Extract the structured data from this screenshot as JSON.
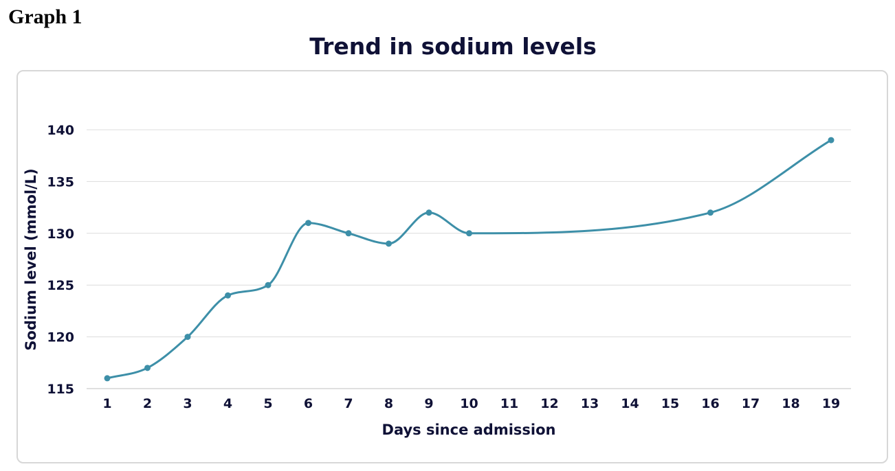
{
  "heading": "Graph 1",
  "chart_data": {
    "type": "line",
    "title": "Trend in sodium levels",
    "xlabel": "Days since admission",
    "ylabel": "Sodium level (mmol/L)",
    "x_ticks": [
      "1",
      "2",
      "3",
      "4",
      "5",
      "6",
      "7",
      "8",
      "9",
      "10",
      "11",
      "12",
      "13",
      "14",
      "15",
      "16",
      "17",
      "18",
      "19"
    ],
    "y_ticks": [
      115,
      120,
      125,
      130,
      135,
      140
    ],
    "ylim": [
      115,
      140
    ],
    "xlim": [
      1,
      19
    ],
    "grid": true,
    "series": [
      {
        "x": [
          1,
          2,
          3,
          4,
          5,
          6,
          7,
          8,
          9,
          10,
          16,
          19
        ],
        "y": [
          116,
          117,
          120,
          124,
          125,
          131,
          130,
          129,
          132,
          130,
          132,
          139
        ],
        "color": "#3d8fa8"
      }
    ]
  }
}
